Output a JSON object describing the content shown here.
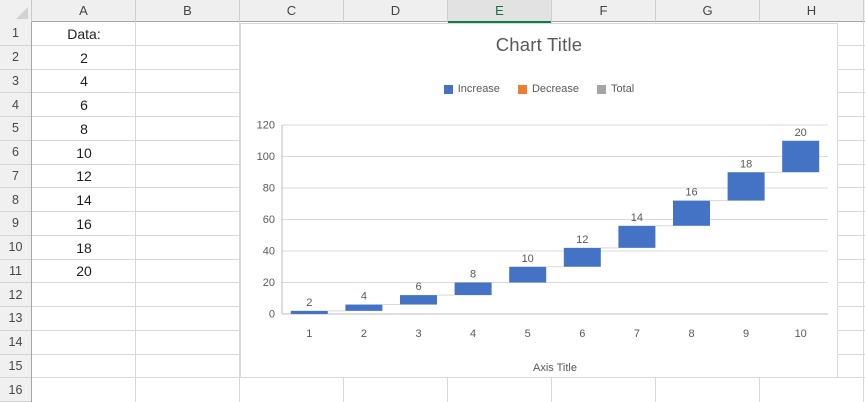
{
  "sheet": {
    "col_headers": [
      "A",
      "B",
      "C",
      "D",
      "E",
      "F",
      "G",
      "H"
    ],
    "active_col": "E",
    "row_headers": [
      "1",
      "2",
      "3",
      "4",
      "5",
      "6",
      "7",
      "8",
      "9",
      "10",
      "11",
      "12",
      "13",
      "14",
      "15",
      "16"
    ],
    "column_a_values": [
      {
        "row": 1,
        "text": "Data:"
      },
      {
        "row": 2,
        "text": "2"
      },
      {
        "row": 3,
        "text": "4"
      },
      {
        "row": 4,
        "text": "6"
      },
      {
        "row": 5,
        "text": "8"
      },
      {
        "row": 6,
        "text": "10"
      },
      {
        "row": 7,
        "text": "12"
      },
      {
        "row": 8,
        "text": "14"
      },
      {
        "row": 9,
        "text": "16"
      },
      {
        "row": 10,
        "text": "18"
      },
      {
        "row": 11,
        "text": "20"
      }
    ]
  },
  "chart": {
    "title": "Chart Title",
    "axis_title": "Axis Title",
    "legend": [
      {
        "label": "Increase",
        "color": "#4472C4"
      },
      {
        "label": "Decrease",
        "color": "#ED7D31"
      },
      {
        "label": "Total",
        "color": "#A5A5A5"
      }
    ]
  },
  "chart_data": {
    "type": "bar",
    "subtype": "waterfall",
    "title": "Chart Title",
    "xlabel": "Axis Title",
    "ylabel": "",
    "categories": [
      "1",
      "2",
      "3",
      "4",
      "5",
      "6",
      "7",
      "8",
      "9",
      "10"
    ],
    "series": [
      {
        "name": "Increase",
        "values": [
          2,
          4,
          6,
          8,
          10,
          12,
          14,
          16,
          18,
          20
        ]
      }
    ],
    "cumulative": [
      2,
      6,
      12,
      20,
      30,
      42,
      56,
      72,
      90,
      110
    ],
    "data_labels": [
      "2",
      "4",
      "6",
      "8",
      "10",
      "12",
      "14",
      "16",
      "18",
      "20"
    ],
    "ylim": [
      0,
      120
    ],
    "yticks": [
      0,
      20,
      40,
      60,
      80,
      100,
      120
    ],
    "legend_entries": [
      "Increase",
      "Decrease",
      "Total"
    ],
    "legend_position": "top",
    "grid": true,
    "colors": {
      "increase": "#4472C4",
      "decrease": "#ED7D31",
      "total": "#A5A5A5"
    },
    "gridline_color": "#D9D9D9",
    "axis_line_color": "#BFBFBF",
    "text_color": "#595959"
  }
}
